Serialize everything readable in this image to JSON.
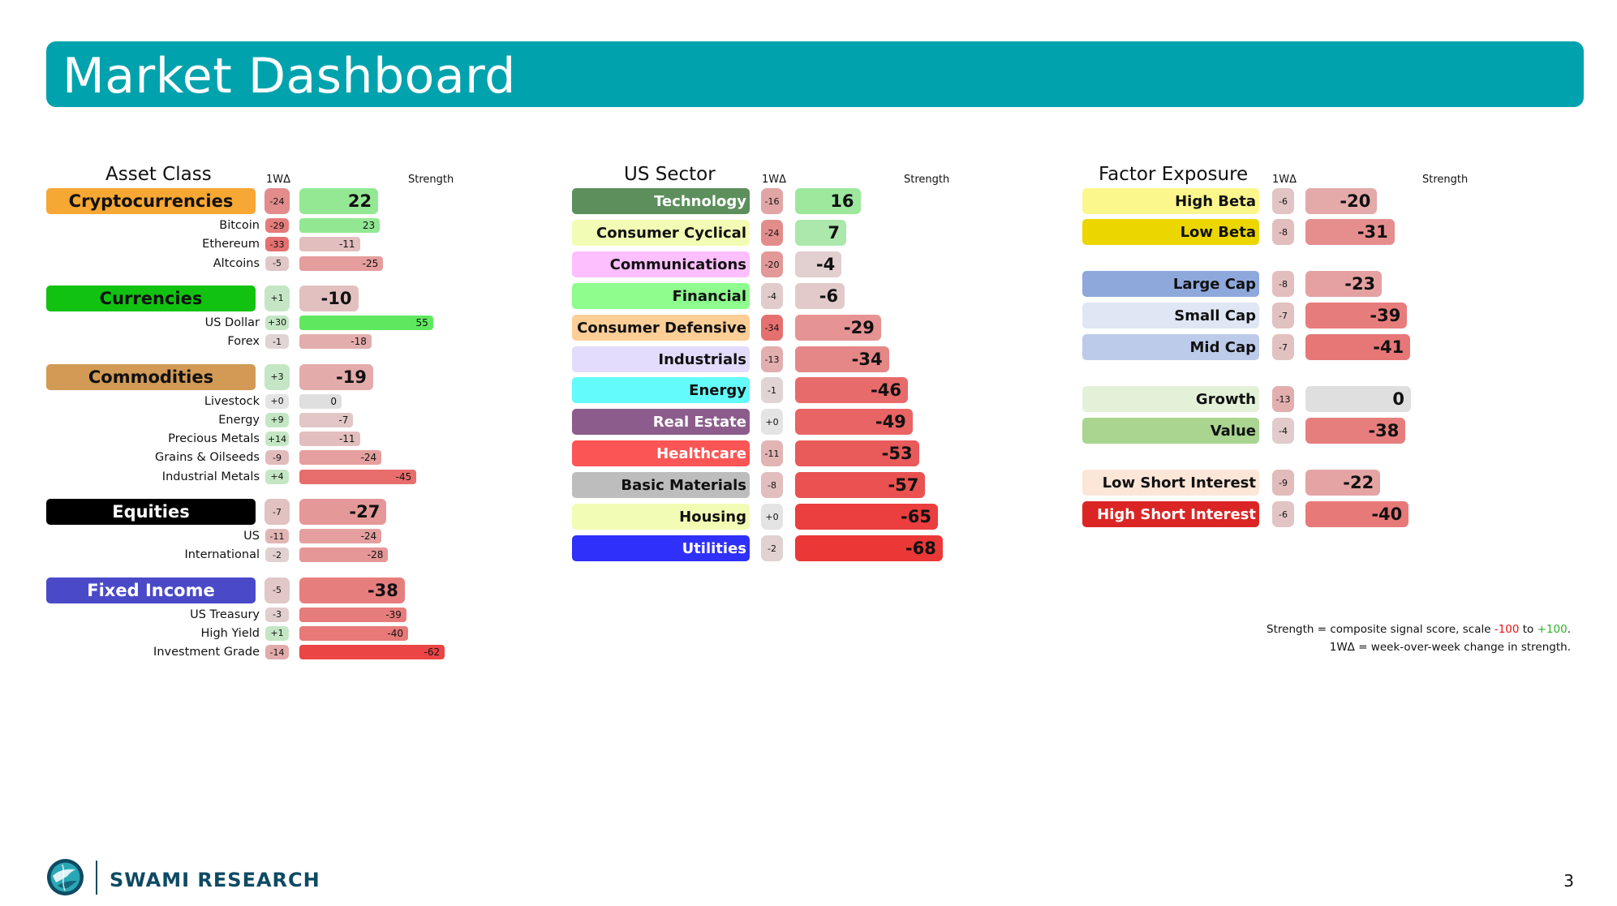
{
  "title": "Market Dashboard",
  "col_delta": "1WΔ",
  "col_strength": "Strength",
  "colors": {
    "header": "#00a3ad",
    "brand": "#0e4a63"
  },
  "panels": [
    {
      "key": "asset",
      "title": "Asset Class",
      "groups": [
        {
          "name": "Cryptocurrencies",
          "color": "#f7a733",
          "text_color": "#111111",
          "delta": -24,
          "strength": 22,
          "items": [
            {
              "name": "Bitcoin",
              "delta": -29,
              "strength": 23
            },
            {
              "name": "Ethereum",
              "delta": -33,
              "strength": -11
            },
            {
              "name": "Altcoins",
              "delta": -5,
              "strength": -25
            }
          ]
        },
        {
          "name": "Currencies",
          "color": "#11c211",
          "text_color": "#111111",
          "delta": 1,
          "strength": -10,
          "items": [
            {
              "name": "US Dollar",
              "delta": 30,
              "strength": 55
            },
            {
              "name": "Forex",
              "delta": -1,
              "strength": -18
            }
          ]
        },
        {
          "name": "Commodities",
          "color": "#d29a55",
          "text_color": "#111111",
          "delta": 3,
          "strength": -19,
          "items": [
            {
              "name": "Livestock",
              "delta": 0,
              "strength": 0
            },
            {
              "name": "Energy",
              "delta": 9,
              "strength": -7
            },
            {
              "name": "Precious Metals",
              "delta": 14,
              "strength": -11
            },
            {
              "name": "Grains & Oilseeds",
              "delta": -9,
              "strength": -24
            },
            {
              "name": "Industrial Metals",
              "delta": 4,
              "strength": -45
            }
          ]
        },
        {
          "name": "Equities",
          "color": "#000000",
          "text_color": "#ffffff",
          "delta": -7,
          "strength": -27,
          "items": [
            {
              "name": "US",
              "delta": -11,
              "strength": -24
            },
            {
              "name": "International",
              "delta": -2,
              "strength": -28
            }
          ]
        },
        {
          "name": "Fixed Income",
          "color": "#4a4ac8",
          "text_color": "#ffffff",
          "delta": -5,
          "strength": -38,
          "items": [
            {
              "name": "US Treasury",
              "delta": -3,
              "strength": -39
            },
            {
              "name": "High Yield",
              "delta": 1,
              "strength": -40
            },
            {
              "name": "Investment Grade",
              "delta": -14,
              "strength": -62
            }
          ]
        }
      ]
    },
    {
      "key": "sector",
      "title": "US Sector",
      "groups": [
        {
          "name": "Technology",
          "color": "#5c8f5c",
          "text_color": "#ffffff",
          "delta": -16,
          "strength": 16
        },
        {
          "name": "Consumer Cyclical",
          "color": "#f3fcb4",
          "text_color": "#111111",
          "delta": -24,
          "strength": 7
        },
        {
          "name": "Communications",
          "color": "#fdbffd",
          "text_color": "#111111",
          "delta": -20,
          "strength": -4
        },
        {
          "name": "Financial",
          "color": "#8efd8e",
          "text_color": "#111111",
          "delta": -4,
          "strength": -6
        },
        {
          "name": "Consumer Defensive",
          "color": "#fdce96",
          "text_color": "#111111",
          "delta": -34,
          "strength": -29
        },
        {
          "name": "Industrials",
          "color": "#e3dcfc",
          "text_color": "#111111",
          "delta": -13,
          "strength": -34
        },
        {
          "name": "Energy",
          "color": "#63fbfb",
          "text_color": "#111111",
          "delta": -1,
          "strength": -46
        },
        {
          "name": "Real Estate",
          "color": "#8c5c8c",
          "text_color": "#ffffff",
          "delta": 0,
          "strength": -49
        },
        {
          "name": "Healthcare",
          "color": "#fb5555",
          "text_color": "#ffffff",
          "delta": -11,
          "strength": -53
        },
        {
          "name": "Basic Materials",
          "color": "#bdbdbd",
          "text_color": "#111111",
          "delta": -8,
          "strength": -57
        },
        {
          "name": "Housing",
          "color": "#f3fcb4",
          "text_color": "#111111",
          "delta": 0,
          "strength": -65
        },
        {
          "name": "Utilities",
          "color": "#3030fb",
          "text_color": "#ffffff",
          "delta": -2,
          "strength": -68
        }
      ]
    },
    {
      "key": "factor",
      "title": "Factor Exposure",
      "groups": [
        {
          "name": "High Beta",
          "color": "#fbf78c",
          "text_color": "#111111",
          "delta": -6,
          "strength": -20
        },
        {
          "name": "Low Beta",
          "color": "#ecd600",
          "text_color": "#111111",
          "delta": -8,
          "strength": -31
        },
        {
          "name": "Large Cap",
          "color": "#8fa8dc",
          "text_color": "#111111",
          "delta": -8,
          "strength": -23
        },
        {
          "name": "Small Cap",
          "color": "#dfe6f4",
          "text_color": "#111111",
          "delta": -7,
          "strength": -39
        },
        {
          "name": "Mid Cap",
          "color": "#bccbe9",
          "text_color": "#111111",
          "delta": -7,
          "strength": -41
        },
        {
          "name": "Growth",
          "color": "#e3f1d9",
          "text_color": "#111111",
          "delta": -13,
          "strength": 0
        },
        {
          "name": "Value",
          "color": "#a9d590",
          "text_color": "#111111",
          "delta": -4,
          "strength": -38
        },
        {
          "name": "Low Short Interest",
          "color": "#fce6d8",
          "text_color": "#111111",
          "delta": -9,
          "strength": -22
        },
        {
          "name": "High Short Interest",
          "color": "#db2525",
          "text_color": "#ffffff",
          "delta": -6,
          "strength": -40
        }
      ]
    }
  ],
  "notes": {
    "line1_pre": "Strength = composite signal score, scale ",
    "line1_neg": "-100",
    "line1_mid": " to ",
    "line1_pos": "+100",
    "line1_end": ".",
    "line2": "1WΔ = week-over-week change in strength."
  },
  "footer": {
    "brand": "SWAMI RESEARCH",
    "page": "3",
    "logo_icon": "globe-logo-icon"
  }
}
